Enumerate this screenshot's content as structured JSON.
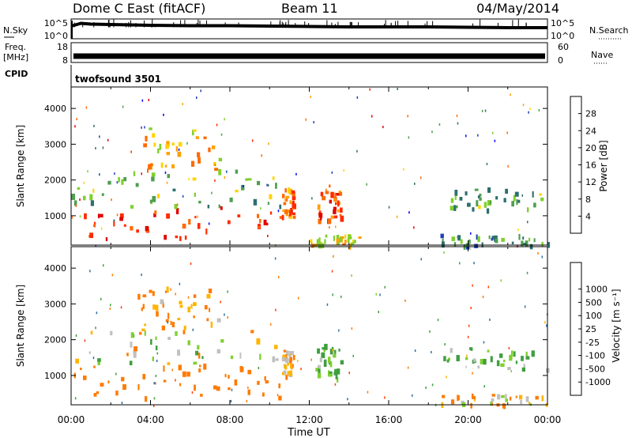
{
  "header": {
    "station": "Dome C East (fitACF)",
    "beam": "Beam 11",
    "date": "04/May/2014"
  },
  "colors": {
    "power_scale": [
      "#0000ff",
      "#1f3fb8",
      "#2e6f6e",
      "#4f9f4f",
      "#7fd02f",
      "#ffd400",
      "#ffa000",
      "#ff6a00",
      "#ff2a00",
      "#e00000"
    ],
    "velocity_scale": [
      "#ff0000",
      "#ff4000",
      "#ff7a00",
      "#ffb400",
      "#c0c0c0",
      "#c0c0c0",
      "#7fd02f",
      "#3f9f3f",
      "#2e6f9f",
      "#0000c0"
    ]
  },
  "chart_data": [
    {
      "type": "line",
      "name": "nsky-nsearch",
      "left_axis_label": "N.Sky",
      "right_axis_label": "N.Search",
      "left_ticks": [
        "10^5",
        "10^0"
      ],
      "right_ticks": [
        "10^5",
        "10^0"
      ],
      "x": [
        0.0,
        0.5,
        1,
        2,
        3,
        4,
        6,
        8,
        10,
        12,
        14,
        16,
        18,
        20,
        22,
        24
      ],
      "values": [
        3.2,
        3.9,
        3.7,
        3.6,
        3.5,
        3.4,
        3.3,
        3.3,
        3.2,
        3.1,
        3.0,
        3.0,
        3.0,
        2.9,
        2.8,
        2.8
      ],
      "ylim": [
        0,
        5
      ]
    },
    {
      "type": "line",
      "name": "freq-nave",
      "left_axis_label": "Freq.",
      "left_unit": "[MHz]",
      "right_axis_label": "Nave",
      "left_ticks": [
        "18",
        "8"
      ],
      "right_ticks": [
        "60",
        "0"
      ],
      "x": [
        0,
        24
      ],
      "values": [
        11,
        11
      ],
      "ylim": [
        8,
        18
      ]
    },
    {
      "type": "table",
      "name": "cpid",
      "label": "CPID",
      "program": "twofsound 3501"
    },
    {
      "type": "heatmap",
      "name": "power",
      "ylabel": "Slant Range [km]",
      "y_ticks": [
        "1000",
        "2000",
        "3000",
        "4000"
      ],
      "ylim": [
        180,
        4600
      ],
      "xlim": [
        0,
        24
      ],
      "colorbar_label": "Power [dB]",
      "colorbar_ticks": [
        "4",
        "8",
        "12",
        "16",
        "20",
        "24",
        "28"
      ],
      "zlim": [
        0,
        32
      ],
      "regions": [
        {
          "x": [
            0.0,
            10.6
          ],
          "y": [
            400,
            1300
          ],
          "z": 28
        },
        {
          "x": [
            0.0,
            10.5
          ],
          "y": [
            1300,
            2300
          ],
          "z": 14
        },
        {
          "x": [
            3.3,
            7.5
          ],
          "y": [
            2300,
            3500
          ],
          "z": 20
        },
        {
          "x": [
            10.6,
            11.2
          ],
          "y": [
            1000,
            1800
          ],
          "z": 24
        },
        {
          "x": [
            12.3,
            13.6
          ],
          "y": [
            900,
            1900
          ],
          "z": 26
        },
        {
          "x": [
            12.0,
            14.5
          ],
          "y": [
            200,
            500
          ],
          "z": 18
        },
        {
          "x": [
            18.5,
            24.0
          ],
          "y": [
            1200,
            1800
          ],
          "z": 12
        },
        {
          "x": [
            18.5,
            24.0
          ],
          "y": [
            200,
            500
          ],
          "z": 10
        }
      ]
    },
    {
      "type": "heatmap",
      "name": "velocity",
      "ylabel": "Slant Range [km]",
      "y_ticks": [
        "1000",
        "2000",
        "3000",
        "4000"
      ],
      "ylim": [
        180,
        4600
      ],
      "xlim": [
        0,
        24
      ],
      "xlabel": "Time UT",
      "x_ticks": [
        "00:00",
        "04:00",
        "08:00",
        "12:00",
        "16:00",
        "20:00",
        "00:00"
      ],
      "colorbar_label": "Velocity [m s⁻¹]",
      "colorbar_ticks": [
        "-1000",
        "-500",
        "-100",
        "-25",
        "25",
        "100",
        "500",
        "1000"
      ],
      "regions": [
        {
          "x": [
            0.0,
            10.6
          ],
          "y": [
            400,
            1300
          ],
          "z": -300
        },
        {
          "x": [
            0.0,
            10.5
          ],
          "y": [
            1300,
            2300
          ],
          "z": 0
        },
        {
          "x": [
            3.3,
            7.5
          ],
          "y": [
            2300,
            3500
          ],
          "z": -150
        },
        {
          "x": [
            10.6,
            11.2
          ],
          "y": [
            1000,
            1800
          ],
          "z": -120
        },
        {
          "x": [
            12.3,
            13.6
          ],
          "y": [
            900,
            1900
          ],
          "z": 150
        },
        {
          "x": [
            18.5,
            24.0
          ],
          "y": [
            1200,
            1800
          ],
          "z": 120
        },
        {
          "x": [
            18.5,
            24.0
          ],
          "y": [
            200,
            500
          ],
          "z": -60
        }
      ]
    }
  ]
}
